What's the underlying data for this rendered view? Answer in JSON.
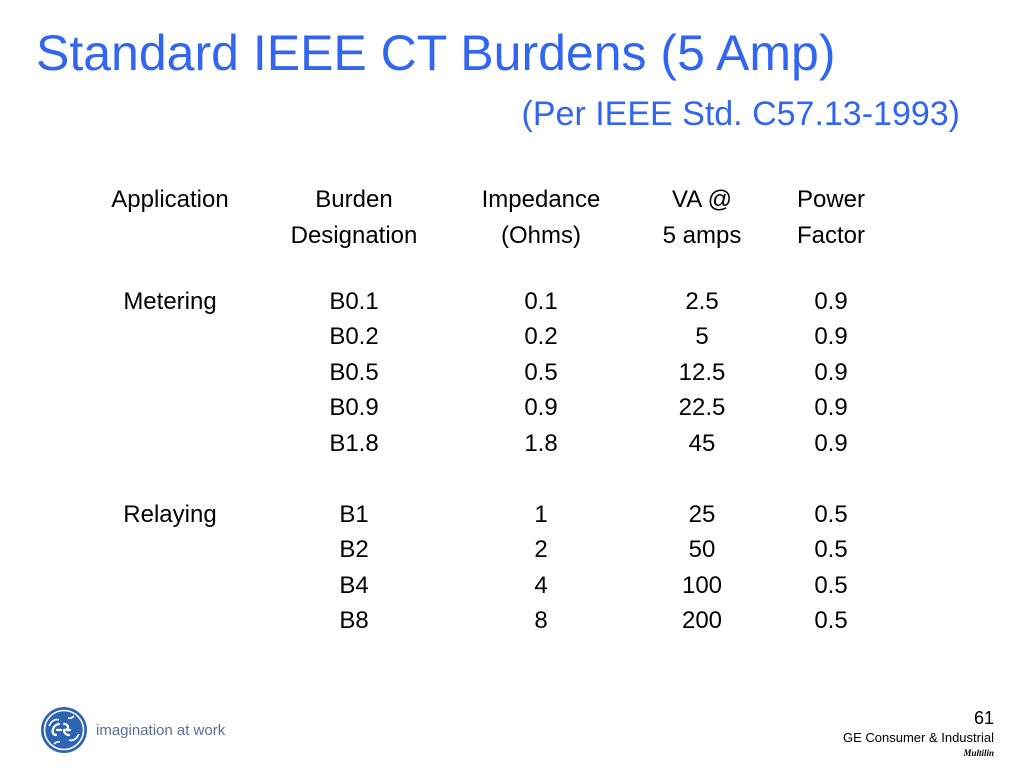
{
  "slide": {
    "title": "Standard IEEE CT Burdens (5 Amp)",
    "subtitle": "(Per IEEE Std. C57.13-1993)"
  },
  "table": {
    "headers": [
      [
        "Application",
        ""
      ],
      [
        "Burden",
        "Designation"
      ],
      [
        "Impedance",
        "(Ohms)"
      ],
      [
        "VA @",
        "5 amps"
      ],
      [
        "Power",
        "Factor"
      ]
    ],
    "rows": [
      [
        "Metering",
        "B0.1",
        "0.1",
        "2.5",
        "0.9"
      ],
      [
        "",
        "B0.2",
        "0.2",
        "5",
        "0.9"
      ],
      [
        "",
        "B0.5",
        "0.5",
        "12.5",
        "0.9"
      ],
      [
        "",
        "B0.9",
        "0.9",
        "22.5",
        "0.9"
      ],
      [
        "",
        "B1.8",
        "1.8",
        "45",
        "0.9"
      ],
      [
        "Relaying",
        "B1",
        "1",
        "25",
        "0.5"
      ],
      [
        "",
        "B2",
        "2",
        "50",
        "0.5"
      ],
      [
        "",
        "B4",
        "4",
        "100",
        "0.5"
      ],
      [
        "",
        "B8",
        "8",
        "200",
        "0.5"
      ]
    ]
  },
  "footer": {
    "logo_icon": "ge-monogram-icon",
    "tagline": "imagination at work",
    "page_number": "61",
    "company": "GE Consumer & Industrial",
    "division": "Multilin"
  },
  "colors": {
    "title": "#3366ee",
    "logo": "#2f64b5"
  }
}
